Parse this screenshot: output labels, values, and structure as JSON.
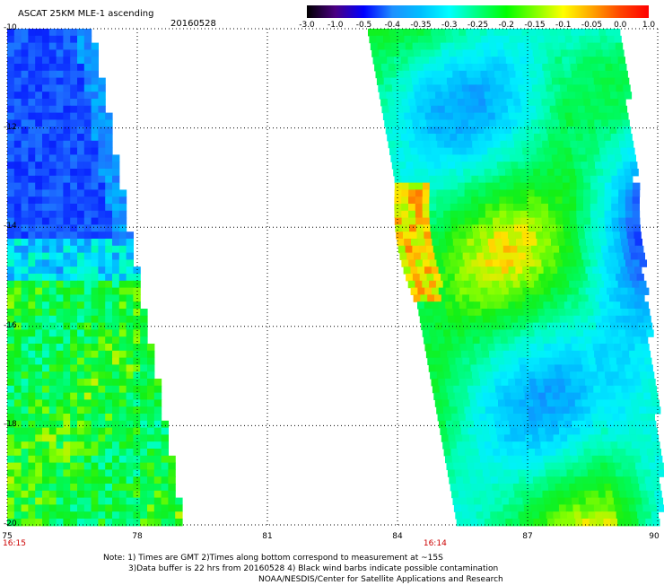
{
  "header": {
    "title": "ASCAT 25KM MLE-1 ascending",
    "date": "20160528"
  },
  "colorbar": {
    "labels": [
      "-3.0",
      "-1.0",
      "-0.5",
      "-0.4",
      "-0.35",
      "-0.3",
      "-0.25",
      "-0.2",
      "-0.15",
      "-0.1",
      "-0.05",
      "0.0",
      "1.0"
    ],
    "colors": [
      "#000000",
      "#4b0082",
      "#0000ff",
      "#1e90ff",
      "#00bfff",
      "#00ffff",
      "#00ff7f",
      "#00ff00",
      "#7fff00",
      "#ffff00",
      "#ffa500",
      "#ff4500",
      "#ff0000"
    ]
  },
  "map": {
    "lat_labels": [
      "-10",
      "-12",
      "-14",
      "-16",
      "-18",
      "-20"
    ],
    "lon_labels": [
      "75",
      "78",
      "81",
      "84",
      "87",
      "90"
    ],
    "lat_range": [
      -10,
      -20
    ],
    "lon_range": [
      75,
      90
    ],
    "swath_times": [
      {
        "lon": 75,
        "time": "16:15"
      },
      {
        "lon": 84.7,
        "time": "16:14"
      }
    ],
    "grid_style": "dotted"
  },
  "notes": [
    "Note: 1) Times are GMT 2)Times along bottom correspond to measurement at ~15S",
    "3)Data buffer is 22 hrs from 20160528 4) Black wind barbs indicate possible contamination",
    "NOAA/NESDIS/Center for Satellite Applications and Research"
  ]
}
